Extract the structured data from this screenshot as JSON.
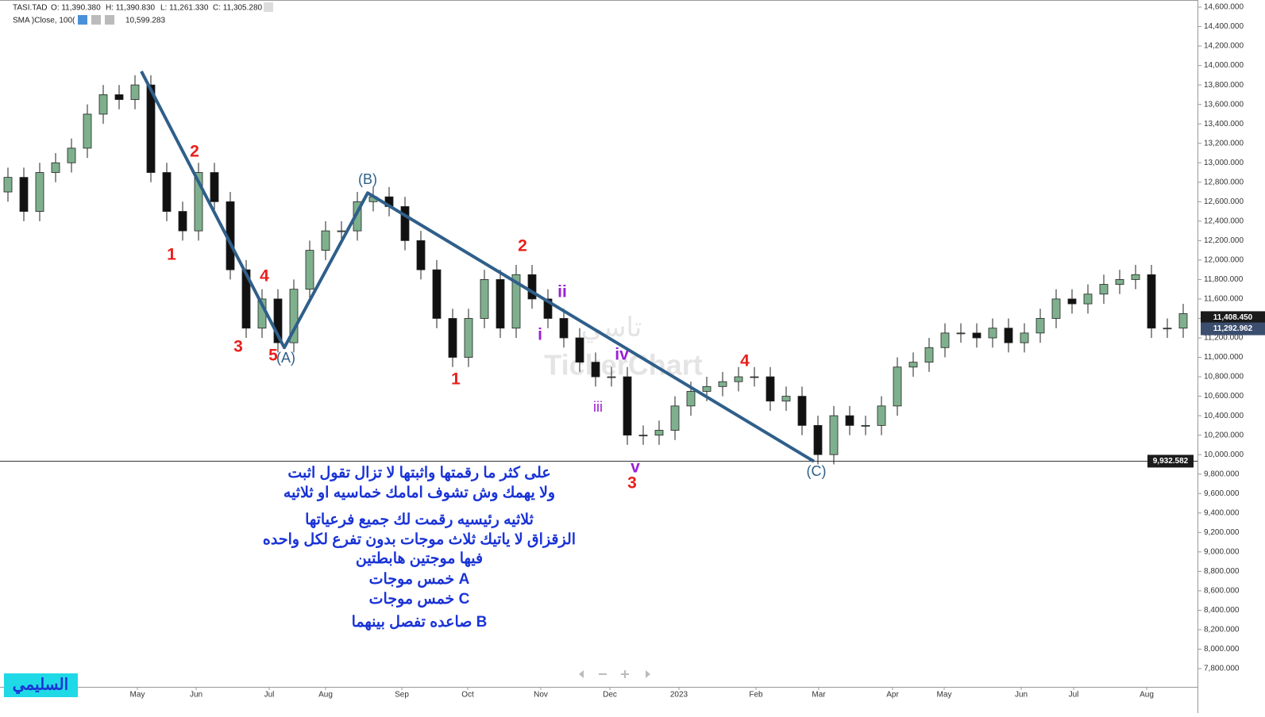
{
  "header": {
    "symbol": "TASI.TAD",
    "open": "O: 11,390.380",
    "high": "H: 11,390.830",
    "low": "L: 11,261.330",
    "close": "C: 11,305.280",
    "indicator": "SMA )Close, 100(",
    "indicator_value": "10,599.283"
  },
  "chart_data": {
    "type": "candlestick",
    "open": [
      12700,
      12850,
      12500,
      12900,
      13000,
      13150,
      13500,
      13700,
      13650,
      13800,
      12900,
      12500,
      12300,
      12900,
      12600,
      11900,
      11300,
      11600,
      11150,
      11700,
      12100,
      12300,
      12300,
      12600,
      12650,
      12550,
      12200,
      11900,
      11400,
      11000,
      11400,
      11800,
      11300,
      11850,
      11600,
      11400,
      11200,
      10950,
      10800,
      10800,
      10200,
      10200,
      10250,
      10500,
      10650,
      10700,
      10750,
      10800,
      10800,
      10550,
      10600,
      10300,
      10000,
      10400,
      10300,
      10300,
      10500,
      10900,
      10950,
      11100,
      11250,
      11250,
      11200,
      11300,
      11150,
      11250,
      11400,
      11600,
      11550,
      11650,
      11750,
      11800,
      11850,
      11300,
      11300
    ],
    "high": [
      12950,
      12950,
      13000,
      13100,
      13250,
      13600,
      13800,
      13800,
      13900,
      13900,
      13000,
      12600,
      13000,
      13000,
      12700,
      12000,
      11700,
      11700,
      11800,
      12200,
      12400,
      12400,
      12700,
      12750,
      12750,
      12650,
      12300,
      12000,
      11500,
      11500,
      11900,
      11900,
      11950,
      11950,
      11700,
      11500,
      11300,
      11050,
      10900,
      10900,
      10300,
      10350,
      10600,
      10750,
      10800,
      10850,
      10900,
      10900,
      10900,
      10700,
      10700,
      10400,
      10500,
      10500,
      10400,
      10600,
      11000,
      11050,
      11200,
      11350,
      11350,
      11350,
      11400,
      11400,
      11350,
      11500,
      11700,
      11700,
      11750,
      11850,
      11900,
      11950,
      11950,
      11400,
      11550
    ],
    "low": [
      12600,
      12400,
      12400,
      12800,
      12900,
      13050,
      13400,
      13550,
      13550,
      12800,
      12400,
      12200,
      12200,
      12500,
      11800,
      11200,
      11200,
      11050,
      11050,
      11600,
      12000,
      12200,
      12200,
      12500,
      12450,
      12100,
      11800,
      11300,
      10900,
      10900,
      11300,
      11200,
      11200,
      11500,
      11300,
      11100,
      10850,
      10700,
      10700,
      10100,
      10100,
      10100,
      10150,
      10400,
      10550,
      10600,
      10650,
      10700,
      10450,
      10450,
      10200,
      9900,
      9900,
      10200,
      10200,
      10200,
      10400,
      10800,
      10850,
      11000,
      11150,
      11100,
      11100,
      11050,
      11050,
      11150,
      11300,
      11450,
      11450,
      11550,
      11650,
      11700,
      11200,
      11200,
      11200
    ],
    "close": [
      12850,
      12500,
      12900,
      13000,
      13150,
      13500,
      13700,
      13650,
      13800,
      12900,
      12500,
      12300,
      12900,
      12600,
      11900,
      11300,
      11600,
      11150,
      11700,
      12100,
      12300,
      12300,
      12600,
      12650,
      12550,
      12200,
      11900,
      11400,
      11000,
      11400,
      11800,
      11300,
      11850,
      11600,
      11400,
      11200,
      10950,
      10800,
      10800,
      10200,
      10200,
      10250,
      10500,
      10650,
      10700,
      10750,
      10800,
      10800,
      10550,
      10600,
      10300,
      10000,
      10400,
      10300,
      10300,
      10500,
      10900,
      10950,
      11100,
      11250,
      11250,
      11200,
      11300,
      11150,
      11250,
      11400,
      11600,
      11550,
      11650,
      11750,
      11800,
      11850,
      11300,
      11300,
      11450
    ],
    "up_color": "#7fb08e",
    "down_color": "#111111",
    "xlim": [
      -0.5,
      74.9
    ],
    "xticks": [
      {
        "value": 8.15,
        "label": "May"
      },
      {
        "value": 11.85,
        "label": "Jun"
      },
      {
        "value": 16.45,
        "label": "Jul"
      },
      {
        "value": 20,
        "label": "Aug"
      },
      {
        "value": 24.8,
        "label": "Sep"
      },
      {
        "value": 28.95,
        "label": "Oct"
      },
      {
        "value": 33.55,
        "label": "Nov"
      },
      {
        "value": 37.9,
        "label": "Dec"
      },
      {
        "value": 42.25,
        "label": "2023"
      },
      {
        "value": 47.1,
        "label": "Feb"
      },
      {
        "value": 51.05,
        "label": "Mar"
      },
      {
        "value": 55.7,
        "label": "Apr"
      },
      {
        "value": 58.95,
        "label": "May"
      },
      {
        "value": 63.8,
        "label": "Jun"
      },
      {
        "value": 67.1,
        "label": "Jul"
      },
      {
        "value": 71.7,
        "label": "Aug"
      }
    ],
    "ylim": [
      7800,
      14600
    ],
    "yticks": [
      {
        "value": 14600,
        "label": "14,600.000"
      },
      {
        "value": 14400,
        "label": "14,400.000"
      },
      {
        "value": 14200,
        "label": "14,200.000"
      },
      {
        "value": 14000,
        "label": "14,000.000"
      },
      {
        "value": 13800,
        "label": "13,800.000"
      },
      {
        "value": 13600,
        "label": "13,600.000"
      },
      {
        "value": 13400,
        "label": "13,400.000"
      },
      {
        "value": 13200,
        "label": "13,200.000"
      },
      {
        "value": 13000,
        "label": "13,000.000"
      },
      {
        "value": 12800,
        "label": "12,800.000"
      },
      {
        "value": 12600,
        "label": "12,600.000"
      },
      {
        "value": 12400,
        "label": "12,400.000"
      },
      {
        "value": 12200,
        "label": "12,200.000"
      },
      {
        "value": 12000,
        "label": "12,000.000"
      },
      {
        "value": 11800,
        "label": "11,800.000"
      },
      {
        "value": 11600,
        "label": "11,600.000"
      },
      {
        "value": 11400,
        "label": "11,400.000"
      },
      {
        "value": 11200,
        "label": "11,200.000"
      },
      {
        "value": 11000,
        "label": "11,000.000"
      },
      {
        "value": 10800,
        "label": "10,800.000"
      },
      {
        "value": 10600,
        "label": "10,600.000"
      },
      {
        "value": 10400,
        "label": "10,400.000"
      },
      {
        "value": 10200,
        "label": "10,200.000"
      },
      {
        "value": 10000,
        "label": "10,000.000"
      },
      {
        "value": 9800,
        "label": "9,800.000"
      },
      {
        "value": 9600,
        "label": "9,600.000"
      },
      {
        "value": 9400,
        "label": "9,400.000"
      },
      {
        "value": 9200,
        "label": "9,200.000"
      },
      {
        "value": 9000,
        "label": "9,000.000"
      },
      {
        "value": 8800,
        "label": "8,800.000"
      },
      {
        "value": 8600,
        "label": "8,600.000"
      },
      {
        "value": 8400,
        "label": "8,400.000"
      },
      {
        "value": 8200,
        "label": "8,200.000"
      },
      {
        "value": 8000,
        "label": "8,000.000"
      },
      {
        "value": 7800,
        "label": "7,800.000"
      }
    ],
    "wave_line": {
      "color": "#2f5f8a",
      "x": [
        8.4,
        17.4,
        22.65,
        50.75
      ],
      "y": [
        13940,
        11100,
        12690,
        9930
      ]
    },
    "wave_labels": [
      {
        "text": "2",
        "color": "#e8201c"
      },
      {
        "text": "1",
        "color": "#e8201c"
      },
      {
        "text": "3",
        "color": "#e8201c"
      },
      {
        "text": "4",
        "color": "#e8201c"
      },
      {
        "text": "5",
        "color": "#e8201c"
      },
      {
        "text": "(A)",
        "color": "#2f5f8a"
      },
      {
        "text": "(B)",
        "color": "#2f5f8a"
      },
      {
        "text": "2",
        "color": "#e8201c"
      },
      {
        "text": "ii",
        "color": "#9b1fd6"
      },
      {
        "text": "i",
        "color": "#9b1fd6"
      },
      {
        "text": "1",
        "color": "#e8201c"
      },
      {
        "text": "iv",
        "color": "#9b1fd6"
      },
      {
        "text": "iii",
        "color": "#9b1fd6"
      },
      {
        "text": "v",
        "color": "#9b1fd6"
      },
      {
        "text": "3",
        "color": "#e8201c"
      },
      {
        "text": "4",
        "color": "#e8201c"
      },
      {
        "text": "(C)",
        "color": "#2f5f8a"
      }
    ],
    "price_badges": [
      {
        "value": 11408.45,
        "label": "11,408.450",
        "color": "#1b1b1b"
      },
      {
        "value": 11292.962,
        "label": "11,292.962",
        "color": "#3b4e6e"
      },
      {
        "value": 9932.582,
        "label": "9,932.582",
        "color": "#1b1b1b"
      }
    ],
    "support_line": 9932.582,
    "watermark": [
      "تاسي",
      "TickerChart"
    ],
    "notes": [
      "على كثر ما رقمتها واثبتها لا تزال تقول اثبت",
      "ولا يهمك وش تشوف امامك خماسيه او ثلاثيه",
      "ثلاثيه رئيسيه رقمت لك جميع فرعياتها",
      "الزقزاق لا ياتيك ثلاث موجات بدون تفرع لكل واحده",
      "فيها موجتين هابطتين",
      "A خمس موجات",
      "C خمس موجات",
      "B صاعده تفصل بينهما"
    ],
    "signature": "السليمي"
  }
}
